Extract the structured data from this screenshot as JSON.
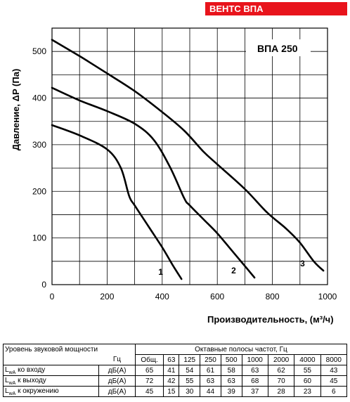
{
  "badge": "ВЕНТС ВПА",
  "chart_data": {
    "type": "line",
    "model_label": "ВПА 250",
    "xlabel": "Производительность, (м³/ч)",
    "ylabel": "Давление, ΔP (Па)",
    "xlim": [
      0,
      1000
    ],
    "ylim": [
      0,
      550
    ],
    "xticks": [
      0,
      200,
      400,
      600,
      800,
      1000
    ],
    "yticks": [
      0,
      100,
      200,
      300,
      400,
      500
    ],
    "grid": true,
    "series": [
      {
        "name": "1",
        "points": [
          [
            0,
            342
          ],
          [
            100,
            320
          ],
          [
            200,
            290
          ],
          [
            250,
            250
          ],
          [
            280,
            190
          ],
          [
            300,
            170
          ],
          [
            350,
            125
          ],
          [
            400,
            80
          ],
          [
            440,
            40
          ],
          [
            470,
            12
          ]
        ]
      },
      {
        "name": "2",
        "points": [
          [
            0,
            422
          ],
          [
            100,
            395
          ],
          [
            200,
            372
          ],
          [
            300,
            345
          ],
          [
            370,
            310
          ],
          [
            430,
            250
          ],
          [
            480,
            185
          ],
          [
            500,
            170
          ],
          [
            550,
            140
          ],
          [
            600,
            110
          ],
          [
            650,
            75
          ],
          [
            700,
            40
          ],
          [
            735,
            15
          ]
        ]
      },
      {
        "name": "3",
        "points": [
          [
            0,
            525
          ],
          [
            100,
            490
          ],
          [
            200,
            453
          ],
          [
            300,
            415
          ],
          [
            400,
            370
          ],
          [
            480,
            330
          ],
          [
            550,
            285
          ],
          [
            600,
            258
          ],
          [
            700,
            205
          ],
          [
            780,
            155
          ],
          [
            850,
            120
          ],
          [
            900,
            90
          ],
          [
            950,
            50
          ],
          [
            985,
            30
          ]
        ]
      }
    ]
  },
  "table": {
    "header_title": "Уровень звуковой мощности",
    "header_bands": "Октавные полосы частот, Гц",
    "unit_col_header": "Гц",
    "columns": [
      "Общ.",
      "63",
      "125",
      "250",
      "500",
      "1000",
      "2000",
      "4000",
      "8000"
    ],
    "rows": [
      {
        "l": "L",
        "sub": "wA",
        "rest": " ко входу",
        "unit": "дБ(А)",
        "values": [
          "65",
          "41",
          "54",
          "61",
          "58",
          "63",
          "62",
          "55",
          "43"
        ]
      },
      {
        "l": "L",
        "sub": "wA",
        "rest": " к выходу",
        "unit": "дБ(А)",
        "values": [
          "72",
          "42",
          "55",
          "63",
          "63",
          "68",
          "70",
          "60",
          "45"
        ]
      },
      {
        "l": "L",
        "sub": "wA",
        "rest": " к окружению",
        "unit": "дБ(А)",
        "values": [
          "45",
          "15",
          "30",
          "44",
          "39",
          "37",
          "28",
          "23",
          "6"
        ]
      }
    ]
  }
}
